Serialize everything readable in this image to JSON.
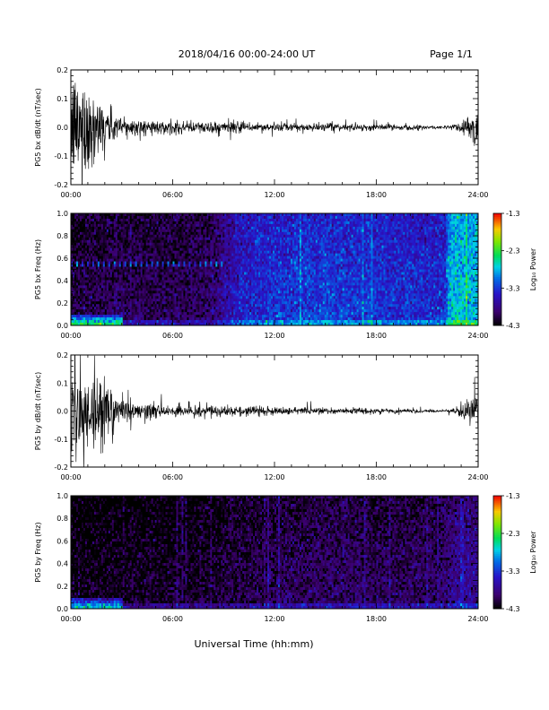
{
  "header": {
    "title": "2018/04/16  00:00-24:00 UT",
    "page": "Page 1/1"
  },
  "footer": {
    "xlabel": "Universal Time (hh:mm)"
  },
  "colorbar": {
    "label": "Log₁₀ Power",
    "ticks": [
      "-1.3",
      "-2.3",
      "-3.3",
      "-4.3"
    ],
    "tick_values": [
      -1.3,
      -2.3,
      -3.3,
      -4.3
    ],
    "range": [
      -4.3,
      -1.3
    ]
  },
  "chart_data": [
    {
      "type": "line",
      "ylabel": "PG5 bx dB/dt (nT/sec)",
      "x_ticks": [
        "00:00",
        "06:00",
        "12:00",
        "18:00",
        "24:00"
      ],
      "xlim": [
        0,
        24
      ],
      "ylim": [
        -0.2,
        0.2
      ],
      "y_ticks": [
        "0.2",
        "0.1",
        "0.0",
        "-0.1",
        "-0.2"
      ],
      "y_tick_values": [
        0.2,
        0.1,
        0.0,
        -0.1,
        -0.2
      ],
      "grid": false,
      "envelope": {
        "hours": [
          0,
          0.5,
          1,
          1.5,
          2,
          2.5,
          3,
          4,
          5,
          6,
          8,
          9,
          10,
          11,
          12,
          14,
          16,
          18,
          20,
          22,
          22.5,
          23.2,
          23.5,
          23.8,
          24
        ],
        "amplitude": [
          0.2,
          0.2,
          0.2,
          0.12,
          0.1,
          0.06,
          0.04,
          0.03,
          0.025,
          0.022,
          0.022,
          0.025,
          0.02,
          0.018,
          0.016,
          0.015,
          0.013,
          0.012,
          0.01,
          0.006,
          0.012,
          0.03,
          0.06,
          0.08,
          0.04
        ]
      }
    },
    {
      "type": "heatmap",
      "ylabel": "PG5 bx Freq (Hz)",
      "x_ticks": [
        "00:00",
        "06:00",
        "12:00",
        "18:00",
        "24:00"
      ],
      "xlim": [
        0,
        24
      ],
      "ylim": [
        0,
        1.0
      ],
      "y_ticks": [
        "1.0",
        "0.8",
        "0.6",
        "0.4",
        "0.2",
        "0.0"
      ],
      "y_tick_values": [
        1.0,
        0.8,
        0.6,
        0.4,
        0.2,
        0.0
      ],
      "colorbar_range": [
        -4.3,
        -1.3
      ],
      "power_profile": {
        "hours": [
          0,
          2,
          4,
          6,
          8,
          8.5,
          9.5,
          10,
          12,
          14,
          16,
          18,
          20,
          22,
          22.3,
          23,
          24
        ],
        "log_power": [
          -4.1,
          -4.0,
          -4.0,
          -4.0,
          -3.95,
          -3.85,
          -3.6,
          -3.4,
          -3.3,
          -3.25,
          -3.25,
          -3.3,
          -3.35,
          -3.35,
          -2.8,
          -2.7,
          -2.75
        ]
      },
      "low_freq_enhancement": {
        "hours": [
          0,
          3
        ],
        "freq_max": 0.1,
        "log_power": -2.3
      },
      "line_at_freq": 0.55
    },
    {
      "type": "line",
      "ylabel": "PG5 by dB/dt (nT/sec)",
      "x_ticks": [
        "00:00",
        "06:00",
        "12:00",
        "18:00",
        "24:00"
      ],
      "xlim": [
        0,
        24
      ],
      "ylim": [
        -0.2,
        0.2
      ],
      "y_ticks": [
        "0.2",
        "0.1",
        "0.0",
        "-0.1",
        "-0.2"
      ],
      "y_tick_values": [
        0.2,
        0.1,
        0.0,
        -0.1,
        -0.2
      ],
      "grid": false,
      "envelope": {
        "hours": [
          0,
          0.5,
          1,
          1.5,
          2,
          2.5,
          3,
          4,
          5,
          6,
          8,
          9,
          10,
          11,
          12,
          14,
          16,
          18,
          20,
          22,
          22.5,
          23.2,
          23.5,
          23.8,
          24
        ],
        "amplitude": [
          0.2,
          0.2,
          0.18,
          0.15,
          0.15,
          0.08,
          0.05,
          0.035,
          0.03,
          0.025,
          0.022,
          0.02,
          0.018,
          0.016,
          0.014,
          0.012,
          0.012,
          0.01,
          0.008,
          0.004,
          0.01,
          0.03,
          0.05,
          0.07,
          0.03
        ]
      }
    },
    {
      "type": "heatmap",
      "ylabel": "PG5 by Freq (Hz)",
      "x_ticks": [
        "00:00",
        "06:00",
        "12:00",
        "18:00",
        "24:00"
      ],
      "xlim": [
        0,
        24
      ],
      "ylim": [
        0,
        1.0
      ],
      "y_ticks": [
        "1.0",
        "0.8",
        "0.6",
        "0.4",
        "0.2",
        "0.0"
      ],
      "y_tick_values": [
        1.0,
        0.8,
        0.6,
        0.4,
        0.2,
        0.0
      ],
      "colorbar_range": [
        -4.3,
        -1.3
      ],
      "power_profile": {
        "hours": [
          0,
          4,
          8,
          10,
          12,
          14,
          16,
          18,
          20,
          22,
          23,
          24
        ],
        "log_power": [
          -4.2,
          -4.2,
          -4.15,
          -4.05,
          -4.0,
          -3.95,
          -3.95,
          -4.0,
          -4.0,
          -3.9,
          -3.7,
          -3.8
        ]
      },
      "low_freq_enhancement": {
        "hours": [
          0,
          3
        ],
        "freq_max": 0.1,
        "log_power": -2.6
      }
    }
  ]
}
